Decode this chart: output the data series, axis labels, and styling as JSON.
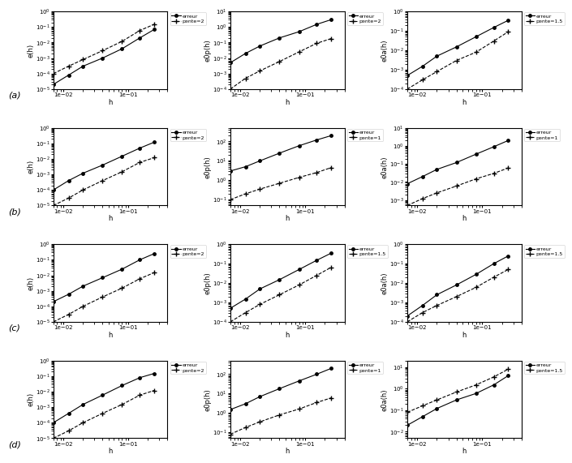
{
  "row_labels": [
    "(a)",
    "(b)",
    "(c)",
    "(d)"
  ],
  "subplots": [
    {
      "row": 0,
      "col": 0,
      "ylabel": "e(h)",
      "slope_label": "pente=2",
      "ex": [
        0.007,
        0.012,
        0.02,
        0.04,
        0.08,
        0.15,
        0.25
      ],
      "ey": [
        2e-05,
        8e-05,
        0.0003,
        0.001,
        0.004,
        0.02,
        0.07
      ],
      "sx": [
        0.007,
        0.012,
        0.02,
        0.04,
        0.08,
        0.15,
        0.25
      ],
      "sy": [
        0.0001,
        0.0003,
        0.0008,
        0.003,
        0.012,
        0.06,
        0.15
      ],
      "ylim": [
        1e-05,
        1.0
      ],
      "xlim": [
        0.007,
        0.4
      ]
    },
    {
      "row": 0,
      "col": 1,
      "ylabel": "e0p(h)",
      "slope_label": "pente=2",
      "ex": [
        0.007,
        0.012,
        0.02,
        0.04,
        0.08,
        0.15,
        0.25
      ],
      "ey": [
        0.005,
        0.02,
        0.06,
        0.2,
        0.5,
        1.5,
        3.0
      ],
      "sx": [
        0.007,
        0.012,
        0.02,
        0.04,
        0.08,
        0.15,
        0.25
      ],
      "sy": [
        0.0001,
        0.0005,
        0.0015,
        0.006,
        0.025,
        0.09,
        0.18
      ],
      "ylim": [
        0.0001,
        10
      ],
      "xlim": [
        0.007,
        0.4
      ]
    },
    {
      "row": 0,
      "col": 2,
      "ylabel": "e0a(h)",
      "slope_label": "pente=1.5",
      "ex": [
        0.007,
        0.012,
        0.02,
        0.04,
        0.08,
        0.15,
        0.25
      ],
      "ey": [
        0.0005,
        0.0015,
        0.005,
        0.015,
        0.05,
        0.15,
        0.35
      ],
      "sx": [
        0.007,
        0.012,
        0.02,
        0.04,
        0.08,
        0.15,
        0.25
      ],
      "sy": [
        0.0001,
        0.0003,
        0.0008,
        0.003,
        0.008,
        0.03,
        0.09
      ],
      "ylim": [
        0.0001,
        1.0
      ],
      "xlim": [
        0.007,
        0.4
      ]
    },
    {
      "row": 1,
      "col": 0,
      "ylabel": "e(h)",
      "slope_label": "pente=2",
      "ex": [
        0.007,
        0.012,
        0.02,
        0.04,
        0.08,
        0.15,
        0.25
      ],
      "ey": [
        0.0001,
        0.0004,
        0.0012,
        0.004,
        0.015,
        0.05,
        0.12
      ],
      "sx": [
        0.007,
        0.012,
        0.02,
        0.04,
        0.08,
        0.15,
        0.25
      ],
      "sy": [
        1e-05,
        3e-05,
        0.0001,
        0.0004,
        0.0015,
        0.006,
        0.012
      ],
      "ylim": [
        1e-05,
        1.0
      ],
      "xlim": [
        0.007,
        0.4
      ]
    },
    {
      "row": 1,
      "col": 1,
      "ylabel": "e0p(h)",
      "slope_label": "pente=1",
      "ex": [
        0.007,
        0.012,
        0.02,
        0.04,
        0.08,
        0.15,
        0.25
      ],
      "ey": [
        3.0,
        5.0,
        10.0,
        25.0,
        60.0,
        120.0,
        200.0
      ],
      "sx": [
        0.007,
        0.012,
        0.02,
        0.04,
        0.08,
        0.15,
        0.25
      ],
      "sy": [
        0.1,
        0.2,
        0.35,
        0.7,
        1.4,
        2.5,
        4.5
      ],
      "ylim": [
        0.05,
        500
      ],
      "xlim": [
        0.007,
        0.4
      ]
    },
    {
      "row": 1,
      "col": 2,
      "ylabel": "e0a(h)",
      "slope_label": "pente=1",
      "ex": [
        0.007,
        0.012,
        0.02,
        0.04,
        0.08,
        0.15,
        0.25
      ],
      "ey": [
        0.008,
        0.02,
        0.05,
        0.12,
        0.35,
        0.9,
        2.0
      ],
      "sx": [
        0.007,
        0.012,
        0.02,
        0.04,
        0.08,
        0.15,
        0.25
      ],
      "sy": [
        0.0005,
        0.0012,
        0.0025,
        0.006,
        0.015,
        0.03,
        0.06
      ],
      "ylim": [
        0.0005,
        10.0
      ],
      "xlim": [
        0.007,
        0.4
      ]
    },
    {
      "row": 2,
      "col": 0,
      "ylabel": "e(h)",
      "slope_label": "pente=2",
      "ex": [
        0.007,
        0.012,
        0.02,
        0.04,
        0.08,
        0.15,
        0.25
      ],
      "ey": [
        0.0002,
        0.0006,
        0.002,
        0.007,
        0.025,
        0.1,
        0.25
      ],
      "sx": [
        0.007,
        0.012,
        0.02,
        0.04,
        0.08,
        0.15,
        0.25
      ],
      "sy": [
        1e-05,
        3e-05,
        0.0001,
        0.0004,
        0.0015,
        0.006,
        0.015
      ],
      "ylim": [
        1e-05,
        1.0
      ],
      "xlim": [
        0.007,
        0.4
      ]
    },
    {
      "row": 2,
      "col": 1,
      "ylabel": "e0p(h)",
      "slope_label": "pente=1.5",
      "ex": [
        0.007,
        0.012,
        0.02,
        0.04,
        0.08,
        0.15,
        0.25
      ],
      "ey": [
        0.0005,
        0.0015,
        0.005,
        0.015,
        0.05,
        0.15,
        0.35
      ],
      "sx": [
        0.007,
        0.012,
        0.02,
        0.04,
        0.08,
        0.15,
        0.25
      ],
      "sy": [
        0.0001,
        0.0003,
        0.0008,
        0.0025,
        0.008,
        0.025,
        0.065
      ],
      "ylim": [
        0.0001,
        1.0
      ],
      "xlim": [
        0.007,
        0.4
      ]
    },
    {
      "row": 2,
      "col": 2,
      "ylabel": "e0a(h)",
      "slope_label": "pente=1.5",
      "ex": [
        0.007,
        0.012,
        0.02,
        0.04,
        0.08,
        0.15,
        0.25
      ],
      "ey": [
        0.0002,
        0.0007,
        0.0025,
        0.008,
        0.028,
        0.1,
        0.25
      ],
      "sx": [
        0.007,
        0.012,
        0.02,
        0.04,
        0.08,
        0.15,
        0.25
      ],
      "sy": [
        0.0001,
        0.0003,
        0.0007,
        0.002,
        0.006,
        0.02,
        0.05
      ],
      "ylim": [
        0.0001,
        1.0
      ],
      "xlim": [
        0.007,
        0.4
      ]
    },
    {
      "row": 3,
      "col": 0,
      "ylabel": "e(h)",
      "slope_label": "pente=2",
      "ex": [
        0.007,
        0.012,
        0.02,
        0.04,
        0.08,
        0.15,
        0.25
      ],
      "ey": [
        0.0001,
        0.0004,
        0.0015,
        0.006,
        0.025,
        0.08,
        0.15
      ],
      "sx": [
        0.007,
        0.012,
        0.02,
        0.04,
        0.08,
        0.15,
        0.25
      ],
      "sy": [
        1e-05,
        3e-05,
        0.0001,
        0.0004,
        0.0015,
        0.006,
        0.012
      ],
      "ylim": [
        1e-05,
        1.0
      ],
      "xlim": [
        0.007,
        0.4
      ]
    },
    {
      "row": 3,
      "col": 1,
      "ylabel": "e0p(h)",
      "slope_label": "pente=1",
      "ex": [
        0.007,
        0.012,
        0.02,
        0.04,
        0.08,
        0.15,
        0.25
      ],
      "ey": [
        1.5,
        3.0,
        7.0,
        18.0,
        45.0,
        100.0,
        200.0
      ],
      "sx": [
        0.007,
        0.012,
        0.02,
        0.04,
        0.08,
        0.15,
        0.25
      ],
      "sy": [
        0.08,
        0.18,
        0.35,
        0.8,
        1.6,
        3.5,
        6.0
      ],
      "ylim": [
        0.05,
        500
      ],
      "xlim": [
        0.007,
        0.4
      ]
    },
    {
      "row": 3,
      "col": 2,
      "ylabel": "e0a(h)",
      "slope_label": "pente=1.5",
      "ex": [
        0.007,
        0.012,
        0.02,
        0.04,
        0.08,
        0.15,
        0.25
      ],
      "ey": [
        0.02,
        0.05,
        0.12,
        0.3,
        0.6,
        1.5,
        4.0
      ],
      "sx": [
        0.007,
        0.012,
        0.02,
        0.04,
        0.08,
        0.15,
        0.25
      ],
      "sy": [
        0.08,
        0.16,
        0.3,
        0.7,
        1.5,
        3.5,
        8.0
      ],
      "ylim": [
        0.005,
        20.0
      ],
      "xlim": [
        0.007,
        0.4
      ]
    }
  ]
}
